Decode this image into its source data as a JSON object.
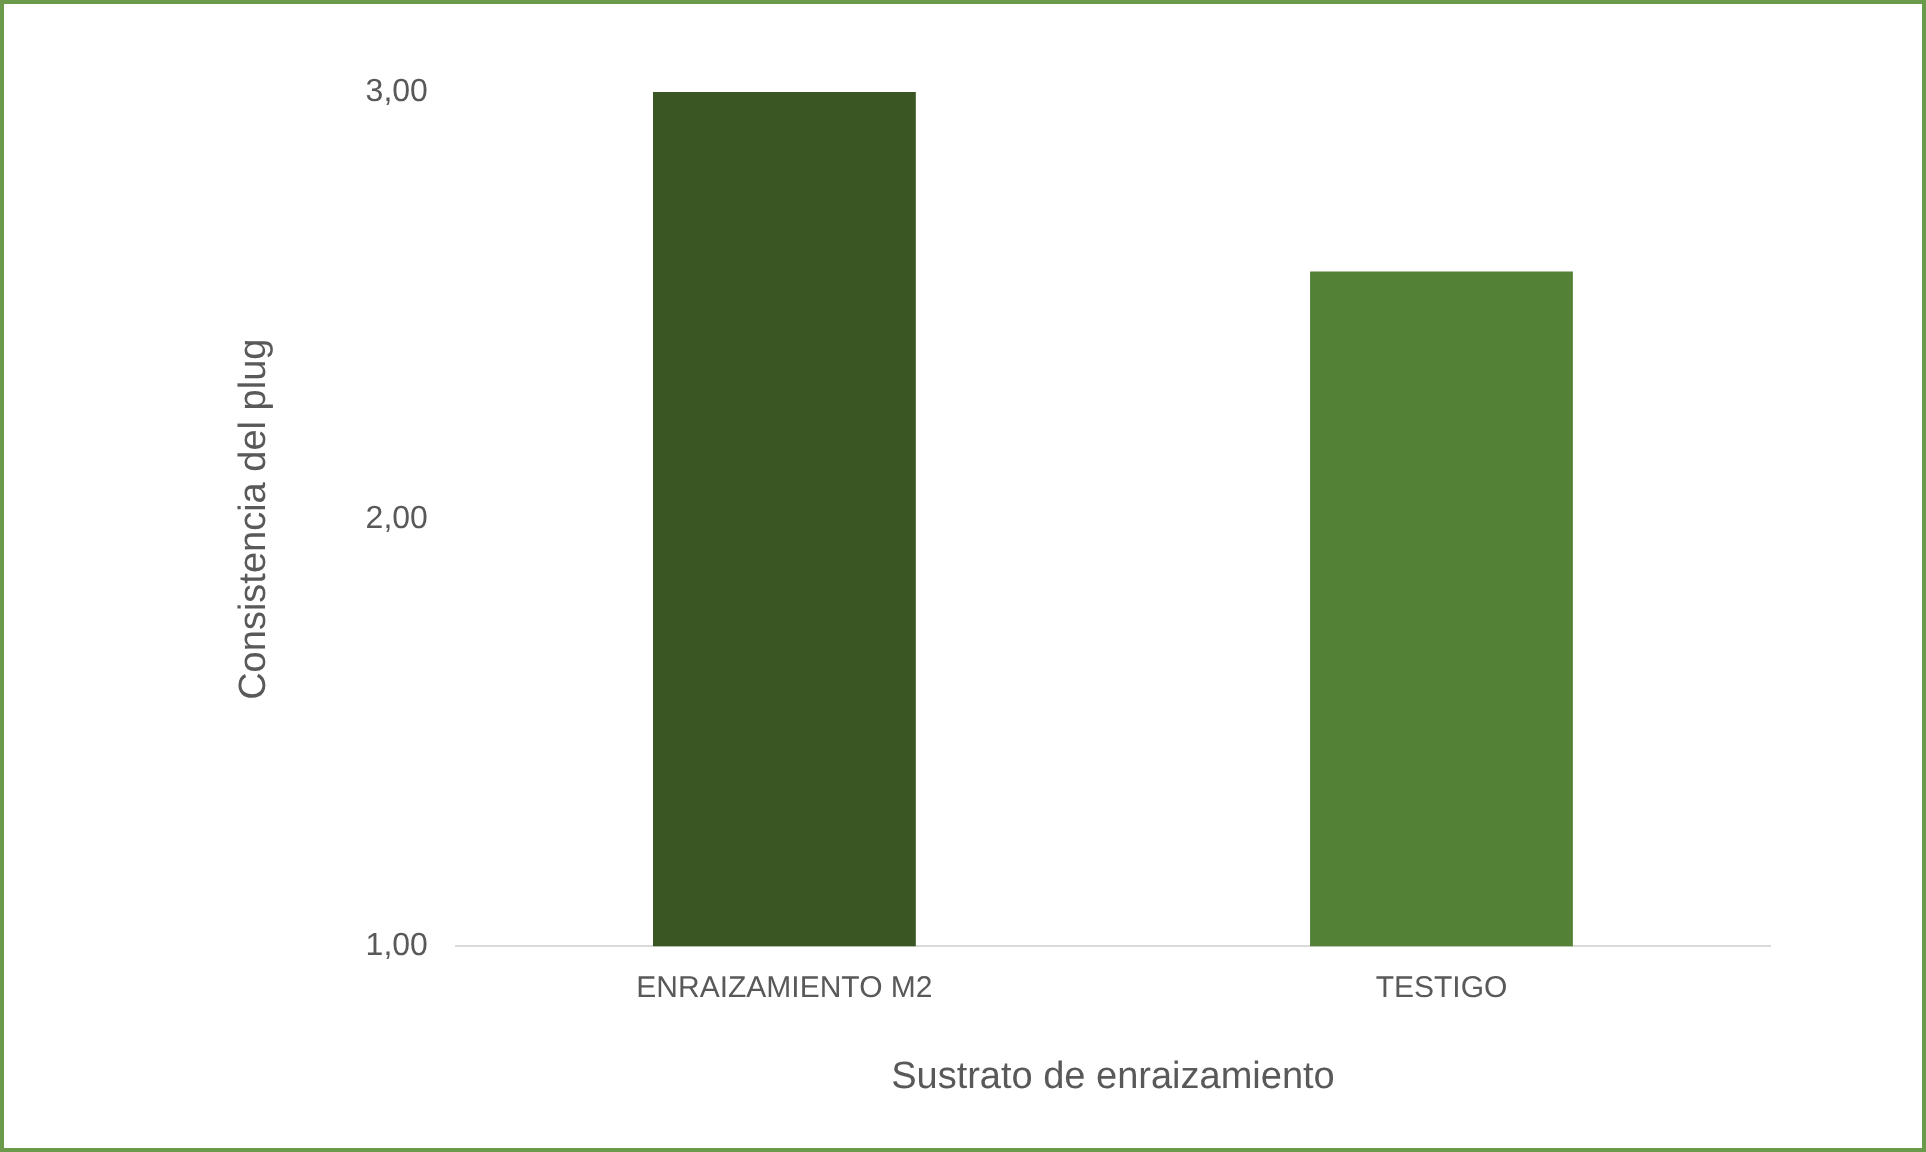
{
  "chart_data": {
    "type": "bar",
    "xlabel": "Sustrato de enraizamiento",
    "ylabel": "Consistencia del plug",
    "categories": [
      "ENRAIZAMIENTO M2",
      "TESTIGO"
    ],
    "values": [
      3.0,
      2.58
    ],
    "colors": [
      "#3a5723",
      "#538135"
    ],
    "ylim": [
      1,
      3
    ],
    "yticks": [
      {
        "value": 1,
        "label": "1,00"
      },
      {
        "value": 2,
        "label": "2,00"
      },
      {
        "value": 3,
        "label": "3,00"
      }
    ],
    "grid": false,
    "legend": false
  }
}
